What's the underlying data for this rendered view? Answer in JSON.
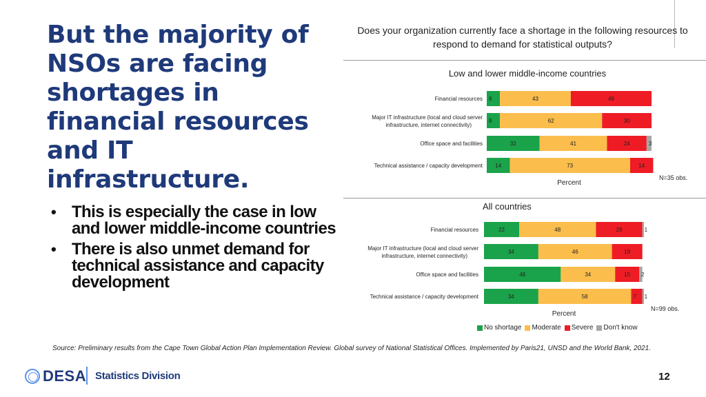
{
  "slide": {
    "title": "But the majority of NSOs are facing shortages in financial resources and IT infrastructure.",
    "bullets": [
      "This is especially the case in low and lower middle-income countries",
      "There is also unmet demand for technical assistance and capacity development"
    ],
    "question": "Does your organization currently face a shortage in the following resources to respond to demand for statistical outputs?",
    "source": "Source: Preliminary results from the  Cape Town Global Action Plan Implementation Review. Global survey of National Statistical Offices. Implemented by Paris21, UNSD and the World Bank, 2021.",
    "footer": {
      "org": "DESA",
      "division": "Statistics Division",
      "page_number": "12"
    }
  },
  "colors": {
    "no_shortage": "#1aa34a",
    "moderate": "#fbbd4c",
    "severe": "#ee1c25",
    "dont_know": "#a6a6a6",
    "title": "#1f3a7a"
  },
  "legend": [
    {
      "label": "No shortage",
      "color": "#1aa34a"
    },
    {
      "label": "Moderate",
      "color": "#fbbd4c"
    },
    {
      "label": "Severe",
      "color": "#ee1c25"
    },
    {
      "label": "Don't know",
      "color": "#a6a6a6"
    }
  ],
  "chart_data": [
    {
      "type": "bar",
      "orientation": "horizontal",
      "stacked": true,
      "title": "Low and lower middle-income countries",
      "xlabel": "Percent",
      "n_label": "N=35 obs.",
      "xlim": [
        0,
        100
      ],
      "categories": [
        [
          "Financial resources"
        ],
        [
          "Major IT infrastructure (local and cloud server",
          "infrastructure, internet connectivity)"
        ],
        [
          "Office space and facilities"
        ],
        [
          "Technical assistance / capacity development"
        ]
      ],
      "series": [
        {
          "name": "No shortage",
          "values": [
            8,
            8,
            32,
            14
          ]
        },
        {
          "name": "Moderate",
          "values": [
            43,
            62,
            41,
            73
          ]
        },
        {
          "name": "Severe",
          "values": [
            49,
            30,
            24,
            14
          ]
        },
        {
          "name": "Don't know",
          "values": [
            0,
            0,
            3,
            0
          ]
        }
      ]
    },
    {
      "type": "bar",
      "orientation": "horizontal",
      "stacked": true,
      "title": "All countries",
      "xlabel": "Percent",
      "n_label": "N=99 obs.",
      "xlim": [
        0,
        100
      ],
      "categories": [
        [
          "Financial resources"
        ],
        [
          "Major IT infrastructure (local and cloud server",
          "infrastructure, internet connectivity)"
        ],
        [
          "Office space and facilities"
        ],
        [
          "Technical assistance / capacity development"
        ]
      ],
      "series": [
        {
          "name": "No shortage",
          "values": [
            22,
            34,
            48,
            34
          ]
        },
        {
          "name": "Moderate",
          "values": [
            48,
            46,
            34,
            58
          ]
        },
        {
          "name": "Severe",
          "values": [
            29,
            19,
            15,
            7
          ]
        },
        {
          "name": "Don't know",
          "values": [
            1,
            0,
            2,
            1
          ]
        }
      ]
    }
  ]
}
